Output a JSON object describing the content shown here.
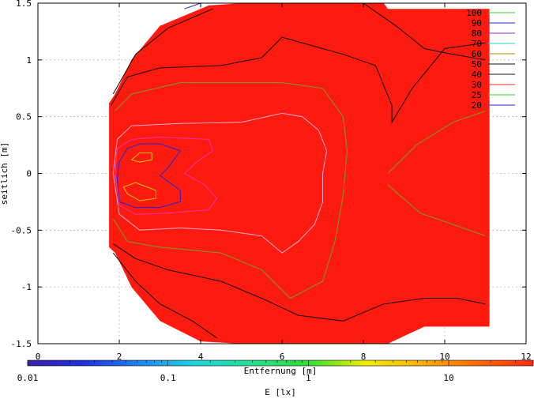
{
  "chart_data": {
    "type": "contour",
    "xlabel": "Entfernung [m]",
    "ylabel": "seitlich [m]",
    "xlim": [
      0,
      12
    ],
    "ylim": [
      -1.5,
      1.5
    ],
    "x_ticks": [
      0,
      2,
      4,
      6,
      8,
      10,
      12
    ],
    "y_ticks": [
      -1.5,
      -1,
      -0.5,
      0,
      0.5,
      1,
      1.5
    ],
    "x_tick_labels": [
      "0",
      "2",
      "4",
      "6",
      "8",
      "10",
      "12"
    ],
    "y_tick_labels": [
      "-1.5",
      "-1",
      "-0.5",
      "0",
      "0.5",
      "1",
      "1.5"
    ],
    "grid": true,
    "fill_color": "#ff1a10",
    "field_outline": [
      [
        1.75,
        0.62
      ],
      [
        1.9,
        0.7
      ],
      [
        2.3,
        1.0
      ],
      [
        3.0,
        1.3
      ],
      [
        4.2,
        1.48
      ],
      [
        5.0,
        1.5
      ],
      [
        6.5,
        1.5
      ],
      [
        8.5,
        1.5
      ],
      [
        8.6,
        1.45
      ],
      [
        11.1,
        1.45
      ],
      [
        11.1,
        -1.35
      ],
      [
        9.5,
        -1.35
      ],
      [
        8.6,
        -1.5
      ],
      [
        6.5,
        -1.5
      ],
      [
        5.0,
        -1.5
      ],
      [
        4.0,
        -1.48
      ],
      [
        3.0,
        -1.3
      ],
      [
        2.3,
        -1.0
      ],
      [
        1.9,
        -0.7
      ],
      [
        1.75,
        -0.65
      ]
    ],
    "legend": {
      "placement": "top-right",
      "entries": [
        {
          "label": "100",
          "color": "#2bd12b"
        },
        {
          "label": "90",
          "color": "#2525d6"
        },
        {
          "label": "80",
          "color": "#9b2ad6"
        },
        {
          "label": "70",
          "color": "#22d6c8"
        },
        {
          "label": "60",
          "color": "#aa8a00"
        },
        {
          "label": "50",
          "color": "#111111"
        },
        {
          "label": "40",
          "color": "#111111"
        },
        {
          "label": "30",
          "color": "#ff2222"
        },
        {
          "label": "25",
          "color": "#2bd12b"
        },
        {
          "label": "20",
          "color": "#2525d6"
        }
      ]
    },
    "contours": [
      {
        "level": 100,
        "color": "#c8c800",
        "points": [
          [
            2.3,
            0.12
          ],
          [
            2.5,
            0.18
          ],
          [
            2.8,
            0.18
          ],
          [
            2.8,
            0.12
          ],
          [
            2.5,
            0.1
          ],
          [
            2.3,
            0.12
          ]
        ]
      },
      {
        "level": 100,
        "color": "#c8c800",
        "points": [
          [
            2.1,
            -0.12
          ],
          [
            2.4,
            -0.08
          ],
          [
            2.9,
            -0.15
          ],
          [
            2.9,
            -0.22
          ],
          [
            2.5,
            -0.24
          ],
          [
            2.2,
            -0.18
          ],
          [
            2.1,
            -0.12
          ]
        ]
      },
      {
        "level": 90,
        "color": "#2525d6",
        "points": [
          [
            2.0,
            0.1
          ],
          [
            2.2,
            0.22
          ],
          [
            2.5,
            0.26
          ],
          [
            3.0,
            0.26
          ],
          [
            3.5,
            0.2
          ],
          [
            3.2,
            0.05
          ],
          [
            3.0,
            -0.02
          ],
          [
            3.5,
            -0.15
          ],
          [
            3.5,
            -0.25
          ],
          [
            3.0,
            -0.3
          ],
          [
            2.4,
            -0.3
          ],
          [
            2.0,
            -0.25
          ],
          [
            1.95,
            -0.05
          ],
          [
            2.0,
            0.1
          ]
        ]
      },
      {
        "level": 80,
        "color": "#ff2dae",
        "points": [
          [
            1.95,
            0.22
          ],
          [
            2.3,
            0.3
          ],
          [
            3.0,
            0.32
          ],
          [
            4.2,
            0.3
          ],
          [
            4.3,
            0.2
          ],
          [
            3.9,
            0.1
          ],
          [
            3.6,
            0.0
          ],
          [
            4.1,
            -0.1
          ],
          [
            4.4,
            -0.22
          ],
          [
            4.2,
            -0.32
          ],
          [
            3.2,
            -0.35
          ],
          [
            2.4,
            -0.36
          ],
          [
            2.0,
            -0.28
          ],
          [
            1.9,
            0.0
          ],
          [
            1.95,
            0.22
          ]
        ]
      },
      {
        "level": 60,
        "color": "#e8a8d0",
        "points": [
          [
            1.95,
            0.3
          ],
          [
            2.3,
            0.42
          ],
          [
            3.5,
            0.44
          ],
          [
            5.0,
            0.45
          ],
          [
            6.0,
            0.53
          ],
          [
            6.5,
            0.5
          ],
          [
            6.9,
            0.38
          ],
          [
            7.1,
            0.2
          ],
          [
            7.0,
            0.0
          ],
          [
            7.0,
            -0.25
          ],
          [
            6.8,
            -0.45
          ],
          [
            6.4,
            -0.6
          ],
          [
            6.0,
            -0.7
          ],
          [
            5.5,
            -0.55
          ],
          [
            4.5,
            -0.5
          ],
          [
            3.5,
            -0.48
          ],
          [
            2.5,
            -0.5
          ],
          [
            2.0,
            -0.36
          ],
          [
            1.85,
            0.0
          ],
          [
            1.95,
            0.3
          ]
        ]
      },
      {
        "level": 50,
        "color": "#7a9a20",
        "points": [
          [
            1.9,
            0.55
          ],
          [
            2.3,
            0.7
          ],
          [
            3.5,
            0.8
          ],
          [
            5.0,
            0.8
          ],
          [
            6.0,
            0.8
          ],
          [
            7.0,
            0.75
          ],
          [
            7.5,
            0.5
          ],
          [
            7.6,
            0.2
          ],
          [
            7.5,
            -0.2
          ],
          [
            7.3,
            -0.6
          ],
          [
            7.0,
            -0.95
          ],
          [
            6.2,
            -1.1
          ],
          [
            5.5,
            -0.85
          ],
          [
            4.5,
            -0.7
          ],
          [
            3.0,
            -0.65
          ],
          [
            2.2,
            -0.6
          ],
          [
            1.85,
            -0.4
          ]
        ]
      },
      {
        "level": 40,
        "color": "#111111",
        "points": [
          [
            1.8,
            0.6
          ],
          [
            2.2,
            0.85
          ],
          [
            3.0,
            0.93
          ],
          [
            4.5,
            0.95
          ],
          [
            5.5,
            1.02
          ],
          [
            6.0,
            1.2
          ],
          [
            6.8,
            1.12
          ],
          [
            7.5,
            1.05
          ],
          [
            8.3,
            0.95
          ],
          [
            8.7,
            0.6
          ],
          [
            8.7,
            0.45
          ],
          [
            9.2,
            0.75
          ],
          [
            10.0,
            1.1
          ],
          [
            11.0,
            1.15
          ]
        ]
      },
      {
        "level": 30,
        "color": "#111111",
        "points": [
          [
            1.85,
            0.7
          ],
          [
            2.4,
            1.05
          ],
          [
            3.2,
            1.28
          ],
          [
            4.3,
            1.45
          ]
        ]
      },
      {
        "level": 30,
        "color": "#111111",
        "points": [
          [
            8.0,
            1.5
          ],
          [
            8.8,
            1.3
          ],
          [
            9.5,
            1.1
          ],
          [
            10.2,
            1.05
          ],
          [
            11.0,
            1.0
          ]
        ]
      },
      {
        "level": 40,
        "color": "#111111",
        "points": [
          [
            1.85,
            -0.62
          ],
          [
            2.4,
            -0.75
          ],
          [
            3.2,
            -0.85
          ],
          [
            4.5,
            -0.95
          ],
          [
            5.5,
            -1.1
          ],
          [
            6.4,
            -1.25
          ],
          [
            7.5,
            -1.3
          ],
          [
            8.5,
            -1.15
          ],
          [
            9.5,
            -1.1
          ],
          [
            10.3,
            -1.1
          ],
          [
            11.0,
            -1.15
          ]
        ]
      },
      {
        "level": 30,
        "color": "#111111",
        "points": [
          [
            1.85,
            -0.7
          ],
          [
            2.4,
            -0.95
          ],
          [
            3.0,
            -1.15
          ],
          [
            3.8,
            -1.3
          ],
          [
            4.4,
            -1.45
          ]
        ]
      },
      {
        "level": 25,
        "color": "#7a9a20",
        "points": [
          [
            8.6,
            0.0
          ],
          [
            9.3,
            0.25
          ],
          [
            10.2,
            0.45
          ],
          [
            11.0,
            0.55
          ]
        ]
      },
      {
        "level": 25,
        "color": "#7a9a20",
        "points": [
          [
            8.6,
            -0.1
          ],
          [
            9.4,
            -0.35
          ],
          [
            10.2,
            -0.45
          ],
          [
            11.0,
            -0.55
          ]
        ]
      },
      {
        "level": 20,
        "color": "#2525d6",
        "points": [
          [
            3.6,
            1.45
          ],
          [
            4.0,
            1.5
          ]
        ]
      }
    ]
  },
  "colorbar": {
    "label": "E [lx]",
    "tick_labels": [
      "0.01",
      "0.1",
      "1",
      "10"
    ],
    "tick_values": [
      0.01,
      0.1,
      1,
      10
    ],
    "min": 0.01,
    "max": 40,
    "scale": "log",
    "colors": [
      "#3a1fa8",
      "#2030e0",
      "#1c86f0",
      "#1cd8e0",
      "#22e090",
      "#30e030",
      "#f0f000",
      "#ffb000",
      "#ff6a00",
      "#ff2a10"
    ]
  }
}
